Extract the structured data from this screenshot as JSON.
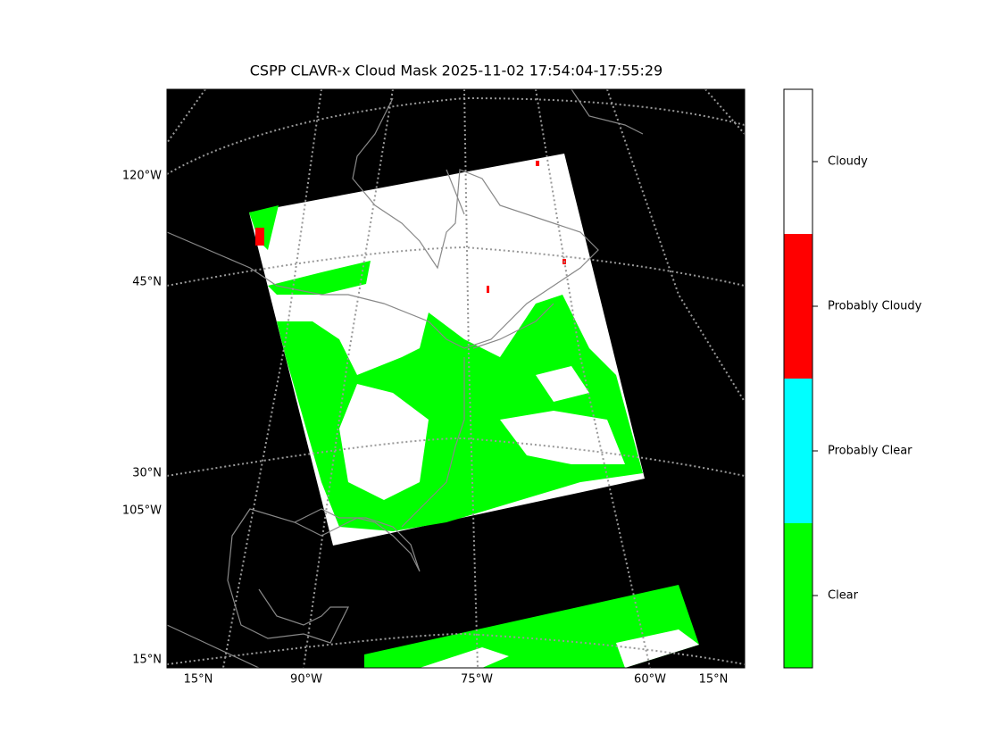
{
  "title": "CSPP CLAVR-x Cloud Mask 2025-11-02 17:54:04-17:55:29",
  "left_labels": [
    "120°W",
    "45°N",
    "30°N",
    "105°W",
    "15°N"
  ],
  "bottom_labels": [
    "15°N",
    "90°W",
    "75°W",
    "60°W",
    "15°N"
  ],
  "colorbar": [
    {
      "name": "Clear",
      "color": "#00ff00"
    },
    {
      "name": "Probably Clear",
      "color": "#00ffff"
    },
    {
      "name": "Probably Cloudy",
      "color": "#ff0000"
    },
    {
      "name": "Cloudy",
      "color": "#ffffff"
    }
  ]
}
